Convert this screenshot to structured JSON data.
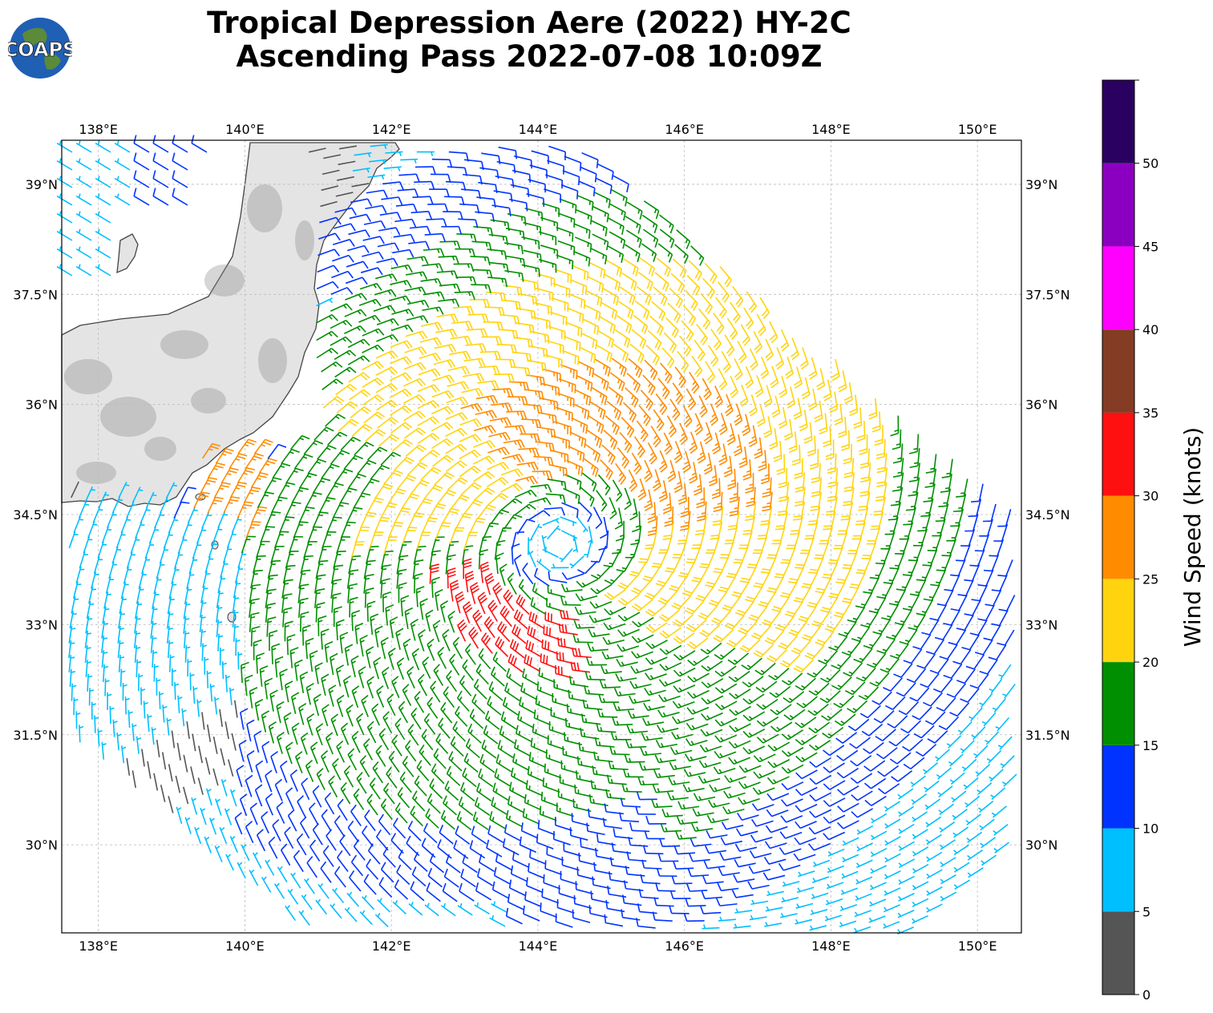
{
  "title": {
    "line1": "Tropical Depression Aere (2022) HY-2C",
    "line2": "Ascending Pass 2022-07-08 10:09Z"
  },
  "logo": {
    "text": "COAPS"
  },
  "map": {
    "lon_range": [
      137.5,
      150.6
    ],
    "lat_range": [
      28.8,
      39.6
    ],
    "lon_ticks": [
      {
        "value": 138,
        "label": "138°E"
      },
      {
        "value": 140,
        "label": "140°E"
      },
      {
        "value": 142,
        "label": "142°E"
      },
      {
        "value": 144,
        "label": "144°E"
      },
      {
        "value": 146,
        "label": "146°E"
      },
      {
        "value": 148,
        "label": "148°E"
      },
      {
        "value": 150,
        "label": "150°E"
      }
    ],
    "lat_ticks": [
      {
        "value": 39,
        "label": "39°N"
      },
      {
        "value": 37.5,
        "label": "37.5°N"
      },
      {
        "value": 36,
        "label": "36°N"
      },
      {
        "value": 34.5,
        "label": "34.5°N"
      },
      {
        "value": 33,
        "label": "33°N"
      },
      {
        "value": 31.5,
        "label": "31.5°N"
      },
      {
        "value": 30,
        "label": "30°N"
      }
    ],
    "gridlines": true,
    "storm_center": {
      "lon": 144.3,
      "lat": 34.1
    },
    "colors": {
      "land": "#e2e2e2",
      "coast": "#444444",
      "grid": "#bbbbbb"
    }
  },
  "colorbar": {
    "label": "Wind Speed (knots)",
    "ticks": [
      "0",
      "5",
      "10",
      "15",
      "20",
      "25",
      "30",
      "35",
      "40",
      "45",
      "50"
    ],
    "bins": [
      {
        "min": 0,
        "max": 5,
        "color": "#555555"
      },
      {
        "min": 5,
        "max": 10,
        "color": "#00bfff"
      },
      {
        "min": 10,
        "max": 15,
        "color": "#0033ff"
      },
      {
        "min": 15,
        "max": 20,
        "color": "#008f00"
      },
      {
        "min": 20,
        "max": 25,
        "color": "#ffd40f"
      },
      {
        "min": 25,
        "max": 30,
        "color": "#ff8c00"
      },
      {
        "min": 30,
        "max": 35,
        "color": "#ff1010"
      },
      {
        "min": 35,
        "max": 40,
        "color": "#843c24"
      },
      {
        "min": 40,
        "max": 45,
        "color": "#ff00ff"
      },
      {
        "min": 45,
        "max": 50,
        "color": "#8b00c0"
      },
      {
        "min": 50,
        "max": 55,
        "color": "#2a0060"
      }
    ]
  }
}
